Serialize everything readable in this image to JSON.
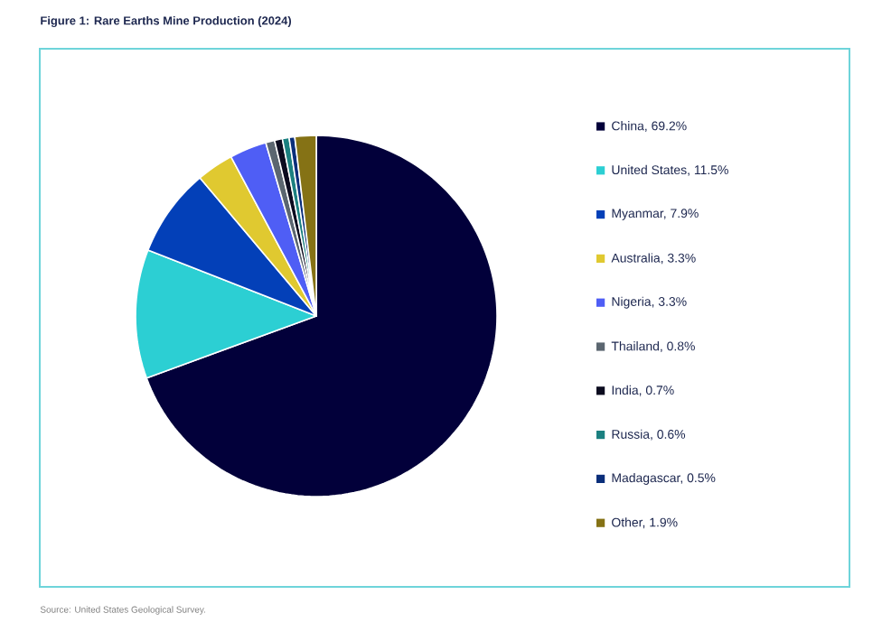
{
  "chart_data": {
    "type": "pie",
    "title": "Figure 1: Rare Earths Mine Production (2024)",
    "categories": [
      "China, 69.2%",
      "United States, 11.5%",
      "Myanmar, 7.9%",
      "Australia, 3.3%",
      "Nigeria, 3.3%",
      "Thailand, 0.8%",
      "India, 0.7%",
      "Russia, 0.6%",
      "Madagascar, 0.5%",
      "Other, 1.9%"
    ],
    "values": [
      69.2,
      11.5,
      7.9,
      3.3,
      3.3,
      0.8,
      0.7,
      0.6,
      0.5,
      1.9
    ],
    "colors": [
      "#02003a",
      "#2ccfd3",
      "#0340b8",
      "#e0c930",
      "#4f5ef5",
      "#5b6670",
      "#0b0b1f",
      "#1b8080",
      "#0a2e7a",
      "#857215"
    ],
    "legend": "right",
    "annotations": [
      "Source: United States Geological Survey."
    ]
  }
}
